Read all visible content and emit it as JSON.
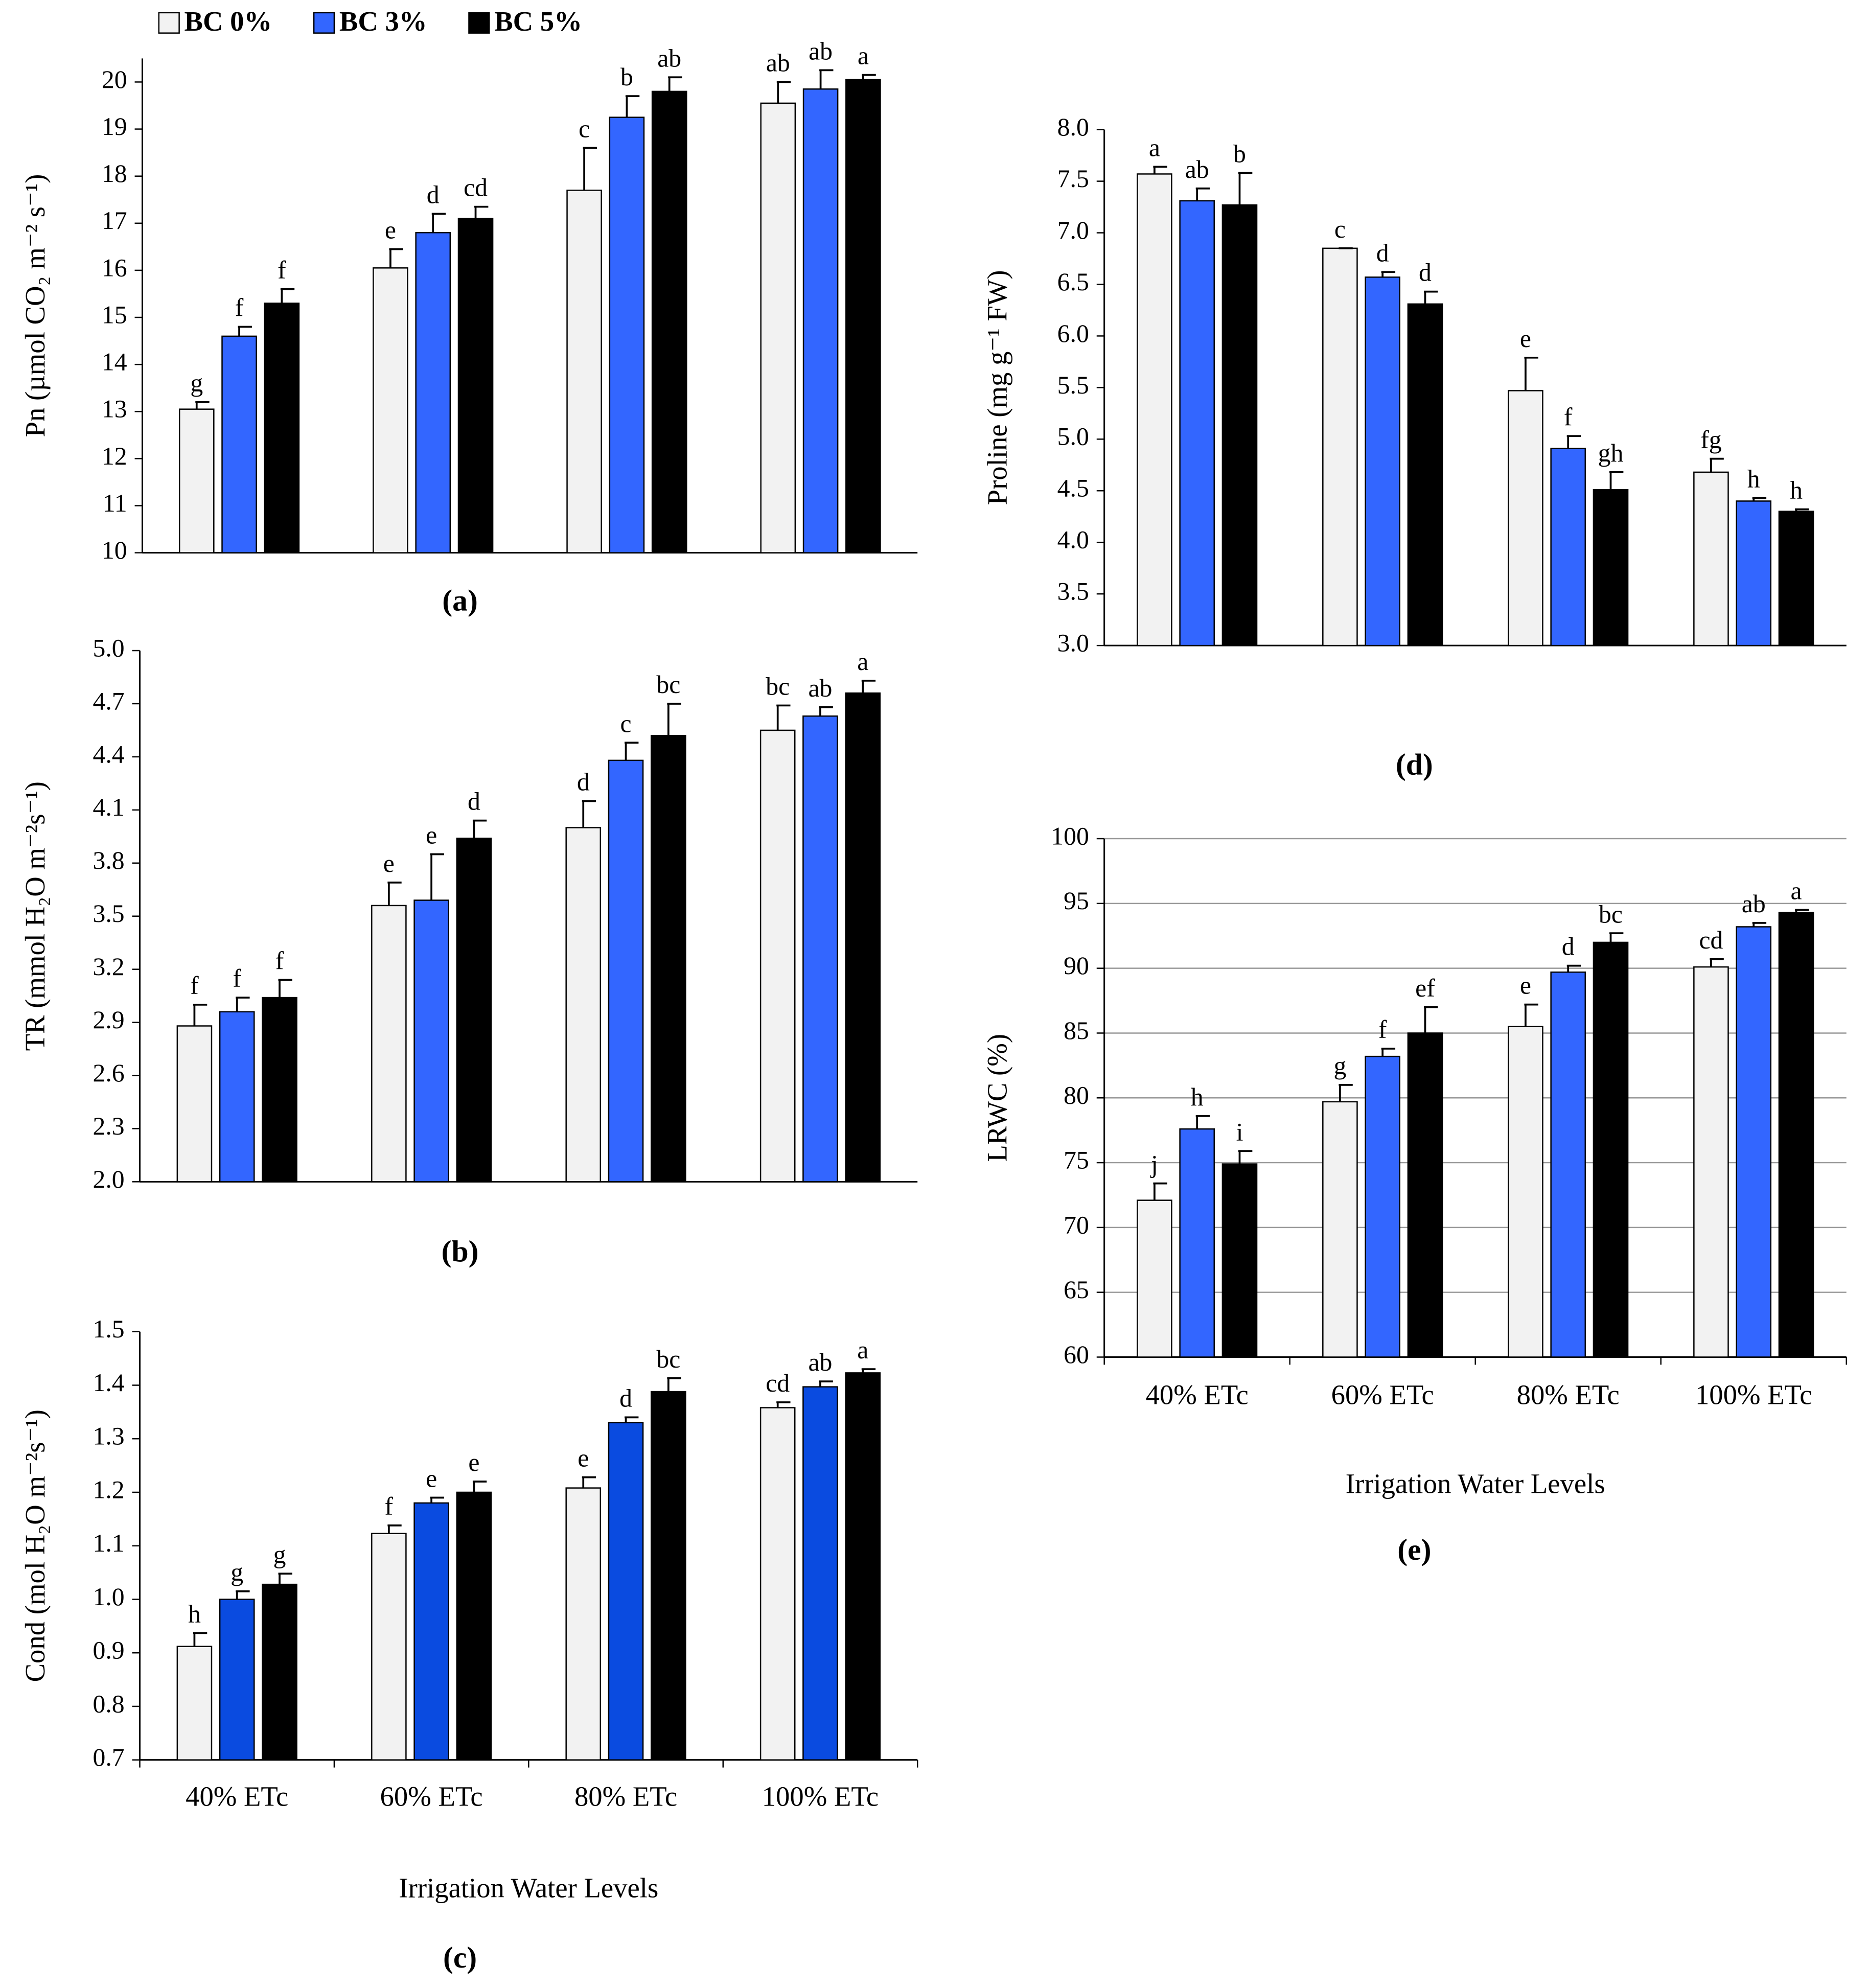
{
  "chart_data": [
    {
      "type": "bar",
      "title": "(a)",
      "ylabel": "Pn (µmol CO₂ m⁻² s⁻¹)",
      "categories": [
        null,
        null,
        null,
        null
      ],
      "ylim": [
        10,
        20.5
      ],
      "yticks": [
        10,
        11,
        12,
        13,
        14,
        15,
        16,
        17,
        18,
        19,
        20
      ],
      "grid": false,
      "series": [
        {
          "name": "BC 0%",
          "color": "#f2f2f2",
          "values": [
            13.05,
            16.05,
            17.7,
            19.55
          ],
          "errors": [
            0.15,
            0.4,
            0.9,
            0.45
          ],
          "annotations": [
            "g",
            "e",
            "c",
            "ab"
          ]
        },
        {
          "name": "BC 3%",
          "color": "#3366ff",
          "values": [
            14.6,
            16.8,
            19.25,
            19.85
          ],
          "errors": [
            0.2,
            0.4,
            0.45,
            0.4
          ],
          "annotations": [
            "f",
            "d",
            "b",
            "ab"
          ]
        },
        {
          "name": "BC 5%",
          "color": "#000000",
          "values": [
            15.3,
            17.1,
            19.8,
            20.05
          ],
          "errors": [
            0.3,
            0.25,
            0.3,
            0.1
          ],
          "annotations": [
            "f",
            "cd",
            "ab",
            "a"
          ]
        }
      ]
    },
    {
      "type": "bar",
      "title": "(b)",
      "ylabel": "TR (mmol H₂O m⁻²s⁻¹)",
      "categories": [
        null,
        null,
        null,
        null
      ],
      "ylim": [
        2,
        5
      ],
      "yticks": [
        {
          "value": 2,
          "label": "2.0"
        },
        2.3,
        2.6,
        2.9,
        3.2,
        3.5,
        3.8,
        4.1,
        4.4,
        4.7,
        {
          "value": 5,
          "label": "5.0"
        }
      ],
      "grid": false,
      "series": [
        {
          "color": "#f2f2f2",
          "values": [
            2.88,
            3.56,
            4.0,
            4.55
          ],
          "errors": [
            0.12,
            0.13,
            0.15,
            0.14
          ],
          "annotations": [
            "f",
            "e",
            "d",
            "bc"
          ]
        },
        {
          "color": "#3366ff",
          "values": [
            2.96,
            3.59,
            4.38,
            4.63
          ],
          "errors": [
            0.08,
            0.26,
            0.1,
            0.05
          ],
          "annotations": [
            "f",
            "e",
            "c",
            "ab"
          ]
        },
        {
          "color": "#000000",
          "values": [
            3.04,
            3.94,
            4.52,
            4.76
          ],
          "errors": [
            0.1,
            0.1,
            0.18,
            0.07
          ],
          "annotations": [
            "f",
            "d",
            "bc",
            "a"
          ]
        }
      ]
    },
    {
      "type": "bar",
      "title": "(c)",
      "ylabel": "Cond (mol H₂O m⁻²s⁻¹)",
      "xlabel": "Irrigation Water Levels",
      "categories": [
        "40% ETc",
        "60% ETc",
        "80% ETc",
        "100% ETc"
      ],
      "ylim": [
        0.7,
        1.5
      ],
      "yticks": [
        0.7,
        0.8,
        0.9,
        {
          "value": 1,
          "label": "1.0"
        },
        1.1,
        1.2,
        1.3,
        1.4,
        1.5
      ],
      "grid": false,
      "series": [
        {
          "color": "#f2f2f2",
          "values": [
            0.912,
            1.123,
            1.208,
            1.358
          ],
          "errors": [
            0.025,
            0.015,
            0.02,
            0.01
          ],
          "annotations": [
            "h",
            "f",
            "e",
            "cd"
          ]
        },
        {
          "color": "#0a4be0",
          "values": [
            1.0,
            1.18,
            1.33,
            1.397
          ],
          "errors": [
            0.015,
            0.01,
            0.01,
            0.01
          ],
          "annotations": [
            "g",
            "e",
            "d",
            "ab"
          ]
        },
        {
          "color": "#000000",
          "values": [
            1.028,
            1.2,
            1.388,
            1.423
          ],
          "errors": [
            0.02,
            0.02,
            0.025,
            0.007
          ],
          "annotations": [
            "g",
            "e",
            "bc",
            "a"
          ]
        }
      ]
    },
    {
      "type": "bar",
      "title": "(d)",
      "ylabel": "Proline (mg g⁻¹ FW)",
      "categories": [
        null,
        null,
        null,
        null
      ],
      "ylim": [
        3,
        8
      ],
      "yticks": [
        {
          "value": 3,
          "label": "3.0"
        },
        3.5,
        {
          "value": 4,
          "label": "4.0"
        },
        4.5,
        {
          "value": 5,
          "label": "5.0"
        },
        5.5,
        {
          "value": 6,
          "label": "6.0"
        },
        6.5,
        {
          "value": 7,
          "label": "7.0"
        },
        7.5,
        {
          "value": 8,
          "label": "8.0"
        }
      ],
      "grid": false,
      "series": [
        {
          "color": "#f2f2f2",
          "values": [
            7.57,
            6.85,
            5.47,
            4.68
          ],
          "errors": [
            0.07,
            0,
            0.32,
            0.13
          ],
          "annotations": [
            "a",
            "c",
            "e",
            "fg"
          ]
        },
        {
          "color": "#3366ff",
          "values": [
            7.31,
            6.57,
            4.91,
            4.4
          ],
          "errors": [
            0.12,
            0.05,
            0.12,
            0.03
          ],
          "annotations": [
            "ab",
            "d",
            "f",
            "h"
          ]
        },
        {
          "color": "#000000",
          "values": [
            7.27,
            6.31,
            4.51,
            4.3
          ],
          "errors": [
            0.31,
            0.12,
            0.17,
            0.02
          ],
          "annotations": [
            "b",
            "d",
            "gh",
            "h"
          ]
        }
      ]
    },
    {
      "type": "bar",
      "title": "(e)",
      "ylabel": "LRWC (%)",
      "xlabel": "Irrigation Water Levels",
      "categories": [
        "40% ETc",
        "60% ETc",
        "80% ETc",
        "100% ETc"
      ],
      "ylim": [
        60,
        100
      ],
      "yticks": [
        60,
        65,
        70,
        75,
        80,
        85,
        90,
        95,
        100
      ],
      "grid": true,
      "series": [
        {
          "color": "#f2f2f2",
          "values": [
            72.1,
            79.7,
            85.5,
            90.1
          ],
          "errors": [
            1.3,
            1.3,
            1.7,
            0.6
          ],
          "annotations": [
            "j",
            "g",
            "e",
            "cd"
          ]
        },
        {
          "color": "#3366ff",
          "values": [
            77.6,
            83.2,
            89.7,
            93.2
          ],
          "errors": [
            1.0,
            0.6,
            0.5,
            0.3
          ],
          "annotations": [
            "h",
            "f",
            "d",
            "ab"
          ]
        },
        {
          "color": "#000000",
          "values": [
            74.9,
            85.0,
            92.0,
            94.3
          ],
          "errors": [
            1.0,
            2.0,
            0.7,
            0.2
          ],
          "annotations": [
            "i",
            "ef",
            "bc",
            "a"
          ]
        }
      ]
    }
  ]
}
